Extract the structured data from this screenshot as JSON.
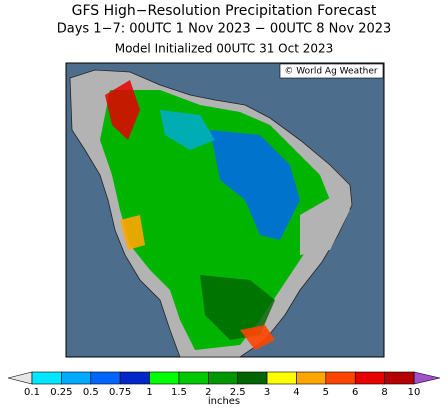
{
  "header": {
    "title": "GFS High−Resolution Precipitation Forecast",
    "subtitle": "Days 1−7: 00UTC 1 Nov 2023 − 00UTC 8 Nov 2023",
    "initialized": "Model Initialized 00UTC 31 Oct 2023"
  },
  "map": {
    "credit": "© World Ag Weather"
  },
  "colorbar": {
    "unit": "inches",
    "ticks": [
      0.1,
      0.25,
      0.5,
      0.75,
      1,
      1.5,
      2,
      2.5,
      3,
      4,
      5,
      6,
      8,
      10
    ],
    "below_color": "#e6e6e6",
    "colors": [
      "#00e6ff",
      "#00aaff",
      "#0064ff",
      "#0028c8",
      "#00ff00",
      "#00c800",
      "#009600",
      "#006400",
      "#ffff00",
      "#ffa500",
      "#ff4500",
      "#e60000",
      "#b40000"
    ],
    "above_color": "#a050c8"
  }
}
